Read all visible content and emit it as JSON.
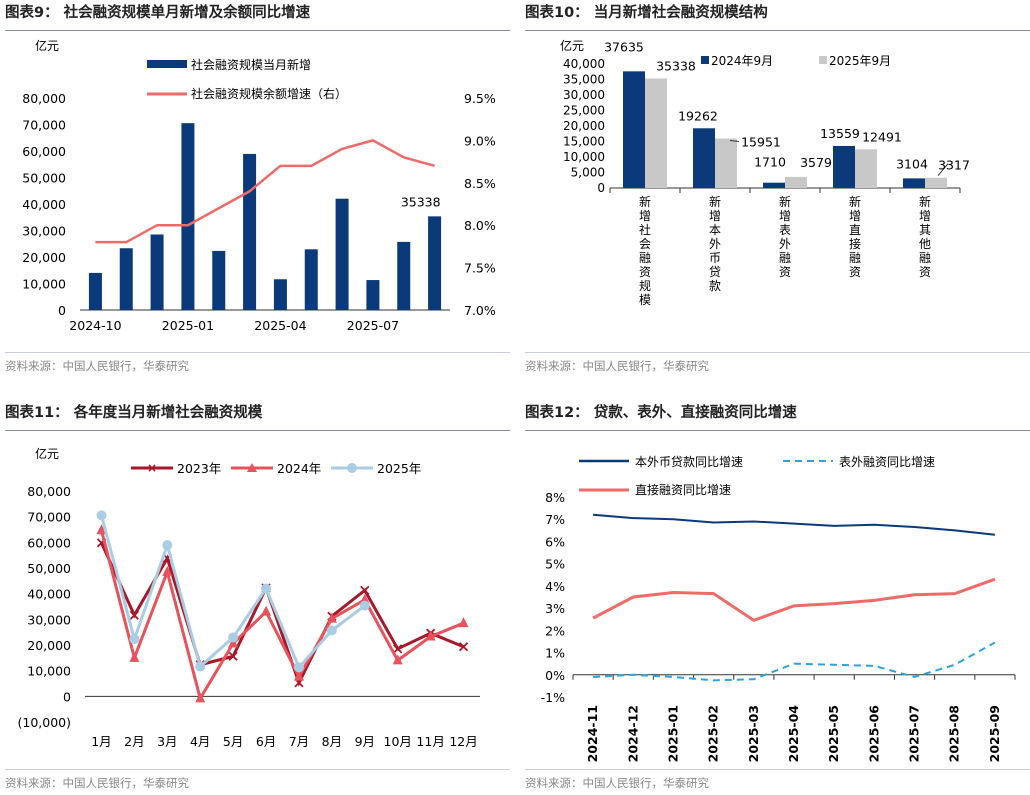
{
  "source": "资料来源：中国人民银行，华泰研究",
  "charts": [
    {
      "title": "图表9：  社会融资规模单月新增及余额同比增速",
      "unit": "亿元",
      "legend": [
        "社会融资规模当月新增",
        "社会融资规模余额增速（右）"
      ],
      "xticks": [
        "2024-10",
        "2025-01",
        "2025-04",
        "2025-07"
      ],
      "ytick_left": [
        "0",
        "10,000",
        "20,000",
        "30,000",
        "40,000",
        "50,000",
        "60,000",
        "70,000",
        "80,000"
      ],
      "ytick_right": [
        "7.0%",
        "7.5%",
        "8.0%",
        "8.5%",
        "9.0%",
        "9.5%"
      ],
      "last_label": "35338"
    },
    {
      "title": "图表10：  当月新增社会融资规模结构",
      "unit": "亿元",
      "legend": [
        "2024年9月",
        "2025年9月"
      ],
      "yticks": [
        "0",
        "5,000",
        "10,000",
        "15,000",
        "20,000",
        "25,000",
        "30,000",
        "35,000",
        "40,000"
      ],
      "labels_2024": [
        "37635",
        "19262",
        "1710",
        "13559",
        "3104"
      ],
      "labels_2025": [
        "35338",
        "15951",
        "3579",
        "12491",
        "3317"
      ],
      "categories": [
        "新增社会融资规模",
        "新增本外币贷款",
        "新增表外融资",
        "新增直接融资",
        "新增其他融资"
      ]
    },
    {
      "title": "图表11：  各年度当月新增社会融资规模",
      "unit": "亿元",
      "legend": [
        "2023年",
        "2024年",
        "2025年"
      ],
      "yticks": [
        "(10,000)",
        "0",
        "10,000",
        "20,000",
        "30,000",
        "40,000",
        "50,000",
        "60,000",
        "70,000",
        "80,000"
      ],
      "months": [
        "1月",
        "2月",
        "3月",
        "4月",
        "5月",
        "6月",
        "7月",
        "8月",
        "9月",
        "10月",
        "11月",
        "12月"
      ]
    },
    {
      "title": "图表12：  贷款、表外、直接融资同比增速",
      "legend": [
        "本外币贷款同比增速",
        "表外融资同比增速",
        "直接融资同比增速"
      ],
      "yticks": [
        "-1%",
        "0%",
        "1%",
        "2%",
        "3%",
        "4%",
        "5%",
        "6%",
        "7%",
        "8%"
      ],
      "xticks": [
        "2024-11",
        "2024-12",
        "2025-01",
        "2025-02",
        "2025-03",
        "2025-04",
        "2025-05",
        "2025-06",
        "2025-07",
        "2025-08",
        "2025-09"
      ]
    }
  ],
  "chart_data": [
    {
      "type": "bar+line",
      "title": "社会融资规模单月新增及余额同比增速",
      "x": [
        "2024-10",
        "2024-11",
        "2024-12",
        "2025-01",
        "2025-02",
        "2025-03",
        "2025-04",
        "2025-05",
        "2025-06",
        "2025-07",
        "2025-08",
        "2025-09"
      ],
      "series": [
        {
          "name": "社会融资规模当月新增",
          "axis": "left",
          "values": [
            14000,
            23300,
            28500,
            70500,
            22300,
            58900,
            11600,
            22900,
            42000,
            11300,
            25700,
            35338
          ]
        },
        {
          "name": "社会融资规模余额增速（右）",
          "axis": "right",
          "values": [
            7.8,
            7.8,
            8.0,
            8.0,
            8.2,
            8.4,
            8.7,
            8.7,
            8.9,
            9.0,
            8.8,
            8.7
          ]
        }
      ],
      "ylim_left": [
        0,
        80000
      ],
      "ylim_right": [
        7.0,
        9.5
      ]
    },
    {
      "type": "bar",
      "title": "当月新增社会融资规模结构",
      "categories": [
        "新增社会融资规模",
        "新增本外币贷款",
        "新增表外融资",
        "新增直接融资",
        "新增其他融资"
      ],
      "series": [
        {
          "name": "2024年9月",
          "values": [
            37635,
            19262,
            1710,
            13559,
            3104
          ]
        },
        {
          "name": "2025年9月",
          "values": [
            35338,
            15951,
            3579,
            12491,
            3317
          ]
        }
      ],
      "ylim": [
        0,
        40000
      ]
    },
    {
      "type": "line",
      "title": "各年度当月新增社会融资规模",
      "categories": [
        "1月",
        "2月",
        "3月",
        "4月",
        "5月",
        "6月",
        "7月",
        "8月",
        "9月",
        "10月",
        "11月",
        "12月"
      ],
      "series": [
        {
          "name": "2023年",
          "values": [
            59800,
            31600,
            53800,
            12300,
            15600,
            42200,
            5300,
            31200,
            41300,
            18500,
            24600,
            19300
          ]
        },
        {
          "name": "2024年",
          "values": [
            64700,
            15000,
            48500,
            -800,
            20600,
            33000,
            7700,
            30300,
            37600,
            14000,
            23300,
            28500
          ]
        },
        {
          "name": "2025年",
          "values": [
            70500,
            22300,
            58900,
            11600,
            22900,
            42000,
            11300,
            25700,
            35338,
            null,
            null,
            null
          ]
        }
      ],
      "ylim": [
        -10000,
        80000
      ]
    },
    {
      "type": "line",
      "title": "贷款、表外、直接融资同比增速",
      "x": [
        "2024-11",
        "2024-12",
        "2025-01",
        "2025-02",
        "2025-03",
        "2025-04",
        "2025-05",
        "2025-06",
        "2025-07",
        "2025-08",
        "2025-09"
      ],
      "series": [
        {
          "name": "本外币贷款同比增速",
          "values": [
            7.2,
            7.05,
            7.0,
            6.85,
            6.9,
            6.8,
            6.7,
            6.75,
            6.65,
            6.5,
            6.3
          ]
        },
        {
          "name": "表外融资同比增速",
          "values": [
            -0.1,
            0.0,
            -0.1,
            -0.25,
            -0.2,
            0.5,
            0.45,
            0.4,
            -0.1,
            0.45,
            1.45
          ]
        },
        {
          "name": "直接融资同比增速",
          "values": [
            2.55,
            3.5,
            3.7,
            3.65,
            2.45,
            3.1,
            3.2,
            3.35,
            3.6,
            3.65,
            4.3
          ]
        }
      ],
      "ylim": [
        -1,
        8
      ]
    }
  ],
  "colors": {
    "navy": "#0b3a7a",
    "red_line": "#f06a6a",
    "gray_bar": "#c8c8c8",
    "dark_red": "#a8182a",
    "coral": "#e8525d",
    "light_blue": "#a9cde3",
    "dash_blue": "#2aa4dc"
  }
}
